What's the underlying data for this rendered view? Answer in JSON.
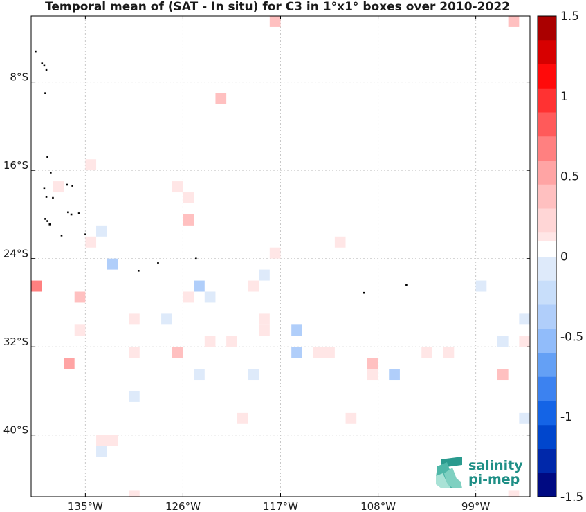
{
  "chart_data": {
    "type": "heatmap",
    "title": "Temporal mean of (SAT - In situ) for C3 in 1°x1° boxes over 2010-2022",
    "xlim": [
      -140,
      -94
    ],
    "ylim": [
      -45.6,
      -2.0
    ],
    "x_ticks": [
      {
        "value": -135,
        "label": "135°W"
      },
      {
        "value": -126,
        "label": "126°W"
      },
      {
        "value": -117,
        "label": "117°W"
      },
      {
        "value": -108,
        "label": "108°W"
      },
      {
        "value": -99,
        "label": "99°W"
      }
    ],
    "y_ticks": [
      {
        "value": -8,
        "label": "8°S"
      },
      {
        "value": -16,
        "label": "16°S"
      },
      {
        "value": -24,
        "label": "24°S"
      },
      {
        "value": -32,
        "label": "32°S"
      },
      {
        "value": -40,
        "label": "40°S"
      }
    ],
    "grid": true,
    "colorbar": {
      "vmin": -1.5,
      "vmax": 1.5,
      "levels": 20,
      "ticks": [
        {
          "value": 1.5,
          "label": "1.5"
        },
        {
          "value": 1,
          "label": "1"
        },
        {
          "value": 0.5,
          "label": "0.5"
        },
        {
          "value": 0,
          "label": "0"
        },
        {
          "value": -0.5,
          "label": "-0.5"
        },
        {
          "value": -1,
          "label": "-1"
        },
        {
          "value": -1.5,
          "label": "-1.5"
        }
      ]
    },
    "cells": [
      {
        "lon": -117.5,
        "lat": -2.5,
        "value": 0.3
      },
      {
        "lon": -95.5,
        "lat": -2.5,
        "value": 0.35
      },
      {
        "lon": -122.5,
        "lat": -9.5,
        "value": 0.3
      },
      {
        "lon": -134.5,
        "lat": -15.5,
        "value": 0.15
      },
      {
        "lon": -137.5,
        "lat": -17.5,
        "value": 0.15
      },
      {
        "lon": -126.5,
        "lat": -17.5,
        "value": 0.15
      },
      {
        "lon": -125.5,
        "lat": -18.5,
        "value": 0.15
      },
      {
        "lon": -125.5,
        "lat": -20.5,
        "value": 0.35
      },
      {
        "lon": -133.5,
        "lat": -21.5,
        "value": -0.15
      },
      {
        "lon": -134.5,
        "lat": -22.5,
        "value": 0.15
      },
      {
        "lon": -111.5,
        "lat": -22.5,
        "value": 0.15
      },
      {
        "lon": -117.5,
        "lat": -23.5,
        "value": 0.15
      },
      {
        "lon": -132.5,
        "lat": -24.5,
        "value": -0.3
      },
      {
        "lon": -118.5,
        "lat": -25.5,
        "value": -0.15
      },
      {
        "lon": -139.5,
        "lat": -26.5,
        "value": 0.65
      },
      {
        "lon": -124.5,
        "lat": -26.5,
        "value": -0.4
      },
      {
        "lon": -119.5,
        "lat": -26.5,
        "value": 0.15
      },
      {
        "lon": -98.5,
        "lat": -26.5,
        "value": -0.15
      },
      {
        "lon": -135.5,
        "lat": -27.5,
        "value": 0.3
      },
      {
        "lon": -125.5,
        "lat": -27.5,
        "value": 0.15
      },
      {
        "lon": -123.5,
        "lat": -27.5,
        "value": -0.15
      },
      {
        "lon": -130.5,
        "lat": -29.5,
        "value": 0.15
      },
      {
        "lon": -127.5,
        "lat": -29.5,
        "value": -0.15
      },
      {
        "lon": -118.5,
        "lat": -29.5,
        "value": 0.15
      },
      {
        "lon": -94.5,
        "lat": -29.5,
        "value": -0.15
      },
      {
        "lon": -135.5,
        "lat": -30.5,
        "value": 0.15
      },
      {
        "lon": -118.5,
        "lat": -30.5,
        "value": 0.15
      },
      {
        "lon": -115.5,
        "lat": -30.5,
        "value": -0.3
      },
      {
        "lon": -123.5,
        "lat": -31.5,
        "value": 0.15
      },
      {
        "lon": -121.5,
        "lat": -31.5,
        "value": 0.15
      },
      {
        "lon": -96.5,
        "lat": -31.5,
        "value": -0.15
      },
      {
        "lon": -94.5,
        "lat": -31.5,
        "value": 0.15
      },
      {
        "lon": -130.5,
        "lat": -32.5,
        "value": 0.15
      },
      {
        "lon": -126.5,
        "lat": -32.5,
        "value": 0.3
      },
      {
        "lon": -115.5,
        "lat": -32.5,
        "value": -0.3
      },
      {
        "lon": -113.5,
        "lat": -32.5,
        "value": 0.15
      },
      {
        "lon": -112.5,
        "lat": -32.5,
        "value": 0.15
      },
      {
        "lon": -103.5,
        "lat": -32.5,
        "value": 0.15
      },
      {
        "lon": -101.5,
        "lat": -32.5,
        "value": 0.15
      },
      {
        "lon": -136.5,
        "lat": -33.5,
        "value": 0.5
      },
      {
        "lon": -108.5,
        "lat": -33.5,
        "value": 0.35
      },
      {
        "lon": -124.5,
        "lat": -34.5,
        "value": -0.15
      },
      {
        "lon": -119.5,
        "lat": -34.5,
        "value": -0.15
      },
      {
        "lon": -108.5,
        "lat": -34.5,
        "value": 0.15
      },
      {
        "lon": -106.5,
        "lat": -34.5,
        "value": -0.3
      },
      {
        "lon": -96.5,
        "lat": -34.5,
        "value": 0.35
      },
      {
        "lon": -130.5,
        "lat": -36.5,
        "value": -0.15
      },
      {
        "lon": -120.5,
        "lat": -38.5,
        "value": 0.15
      },
      {
        "lon": -110.5,
        "lat": -38.5,
        "value": 0.15
      },
      {
        "lon": -94.5,
        "lat": -38.5,
        "value": -0.15
      },
      {
        "lon": -133.5,
        "lat": -40.5,
        "value": 0.15
      },
      {
        "lon": -132.5,
        "lat": -40.5,
        "value": 0.15
      },
      {
        "lon": -133.5,
        "lat": -41.5,
        "value": -0.15
      },
      {
        "lon": -130.5,
        "lat": -45.5,
        "value": 0.15
      },
      {
        "lon": -95.5,
        "lat": -45.5,
        "value": 0.15
      }
    ],
    "land": [
      {
        "lon": -139.6,
        "lat": -5.2
      },
      {
        "lon": -139.0,
        "lat": -6.3
      },
      {
        "lon": -138.8,
        "lat": -6.5
      },
      {
        "lon": -138.6,
        "lat": -6.9
      },
      {
        "lon": -138.7,
        "lat": -9.0
      },
      {
        "lon": -138.5,
        "lat": -14.8
      },
      {
        "lon": -138.2,
        "lat": -16.2
      },
      {
        "lon": -136.7,
        "lat": -17.3
      },
      {
        "lon": -136.2,
        "lat": -17.4
      },
      {
        "lon": -138.8,
        "lat": -17.6
      },
      {
        "lon": -138.6,
        "lat": -18.4
      },
      {
        "lon": -138.0,
        "lat": -18.5
      },
      {
        "lon": -136.6,
        "lat": -19.8
      },
      {
        "lon": -136.3,
        "lat": -20.0
      },
      {
        "lon": -135.6,
        "lat": -19.9
      },
      {
        "lon": -138.7,
        "lat": -20.4
      },
      {
        "lon": -138.5,
        "lat": -20.6
      },
      {
        "lon": -138.3,
        "lat": -20.9
      },
      {
        "lon": -137.2,
        "lat": -21.9
      },
      {
        "lon": -135.0,
        "lat": -21.8
      },
      {
        "lon": -130.1,
        "lat": -25.1
      },
      {
        "lon": -128.3,
        "lat": -24.4
      },
      {
        "lon": -124.8,
        "lat": -24.0
      },
      {
        "lon": -109.3,
        "lat": -27.1
      },
      {
        "lon": -105.4,
        "lat": -26.4
      }
    ]
  },
  "logo": {
    "line1": "salinity",
    "line2": "pi-mep"
  }
}
